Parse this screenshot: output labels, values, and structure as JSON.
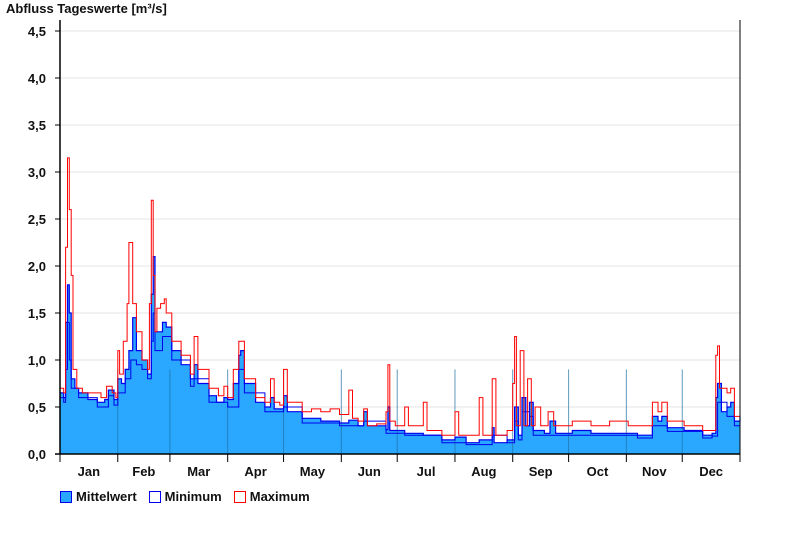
{
  "chart_data": {
    "type": "area",
    "title": "Abfluss Tageswerte [m³/s]",
    "xlabel": "",
    "ylabel": "Abfluss Tageswerte [m³/s]",
    "ylim": [
      0,
      4.5
    ],
    "xlim_days": [
      0,
      365
    ],
    "yticks": [
      "0,0",
      "0,5",
      "1,0",
      "1,5",
      "2,0",
      "2,5",
      "3,0",
      "3,5",
      "4,0",
      "4,5"
    ],
    "months": [
      "Jan",
      "Feb",
      "Mar",
      "Apr",
      "May",
      "Jun",
      "Jul",
      "Aug",
      "Sep",
      "Oct",
      "Nov",
      "Dec"
    ],
    "grid": true,
    "legend_position": "bottom-left",
    "colors": {
      "mean_fill": "#2aa8ff",
      "mean_line": "#0000ee",
      "min": "#0000ee",
      "max": "#ff0000"
    },
    "series": [
      {
        "name": "Mittelwert",
        "points": [
          [
            0,
            0.65
          ],
          [
            2,
            0.6
          ],
          [
            3,
            1.4
          ],
          [
            4,
            1.8
          ],
          [
            5,
            1.5
          ],
          [
            6,
            0.8
          ],
          [
            8,
            0.7
          ],
          [
            10,
            0.65
          ],
          [
            15,
            0.58
          ],
          [
            20,
            0.55
          ],
          [
            24,
            0.58
          ],
          [
            26,
            0.68
          ],
          [
            29,
            0.58
          ],
          [
            31,
            0.8
          ],
          [
            33,
            0.75
          ],
          [
            35,
            0.9
          ],
          [
            37,
            1.1
          ],
          [
            39,
            1.45
          ],
          [
            41,
            1.1
          ],
          [
            44,
            1.0
          ],
          [
            47,
            0.85
          ],
          [
            49,
            1.7
          ],
          [
            50,
            2.1
          ],
          [
            51,
            1.3
          ],
          [
            53,
            1.3
          ],
          [
            55,
            1.4
          ],
          [
            57,
            1.35
          ],
          [
            60,
            1.1
          ],
          [
            65,
            0.95
          ],
          [
            70,
            0.8
          ],
          [
            72,
            0.95
          ],
          [
            74,
            0.75
          ],
          [
            80,
            0.62
          ],
          [
            84,
            0.55
          ],
          [
            88,
            0.6
          ],
          [
            90,
            0.58
          ],
          [
            93,
            0.75
          ],
          [
            96,
            1.05
          ],
          [
            97,
            1.1
          ],
          [
            99,
            0.75
          ],
          [
            105,
            0.55
          ],
          [
            110,
            0.5
          ],
          [
            113,
            0.6
          ],
          [
            115,
            0.48
          ],
          [
            120,
            0.62
          ],
          [
            122,
            0.45
          ],
          [
            130,
            0.38
          ],
          [
            140,
            0.35
          ],
          [
            150,
            0.33
          ],
          [
            155,
            0.36
          ],
          [
            160,
            0.3
          ],
          [
            163,
            0.45
          ],
          [
            165,
            0.3
          ],
          [
            175,
            0.26
          ],
          [
            176,
            0.5
          ],
          [
            177,
            0.25
          ],
          [
            185,
            0.22
          ],
          [
            195,
            0.2
          ],
          [
            205,
            0.15
          ],
          [
            212,
            0.18
          ],
          [
            218,
            0.12
          ],
          [
            225,
            0.15
          ],
          [
            232,
            0.28
          ],
          [
            233,
            0.12
          ],
          [
            240,
            0.15
          ],
          [
            244,
            0.5
          ],
          [
            246,
            0.2
          ],
          [
            248,
            0.6
          ],
          [
            250,
            0.3
          ],
          [
            252,
            0.55
          ],
          [
            254,
            0.25
          ],
          [
            260,
            0.22
          ],
          [
            263,
            0.35
          ],
          [
            266,
            0.22
          ],
          [
            275,
            0.25
          ],
          [
            285,
            0.22
          ],
          [
            300,
            0.22
          ],
          [
            310,
            0.2
          ],
          [
            318,
            0.4
          ],
          [
            321,
            0.35
          ],
          [
            323,
            0.4
          ],
          [
            326,
            0.28
          ],
          [
            335,
            0.25
          ],
          [
            345,
            0.2
          ],
          [
            350,
            0.22
          ],
          [
            352,
            0.6
          ],
          [
            353,
            0.75
          ],
          [
            355,
            0.45
          ],
          [
            358,
            0.5
          ],
          [
            360,
            0.55
          ],
          [
            362,
            0.35
          ],
          [
            365,
            0.4
          ]
        ]
      },
      {
        "name": "Minimum",
        "points": [
          [
            0,
            0.6
          ],
          [
            2,
            0.55
          ],
          [
            3,
            0.9
          ],
          [
            4,
            1.4
          ],
          [
            5,
            1.0
          ],
          [
            6,
            0.7
          ],
          [
            10,
            0.6
          ],
          [
            20,
            0.5
          ],
          [
            26,
            0.62
          ],
          [
            29,
            0.52
          ],
          [
            31,
            0.65
          ],
          [
            35,
            0.8
          ],
          [
            38,
            1.0
          ],
          [
            41,
            0.95
          ],
          [
            44,
            0.9
          ],
          [
            47,
            0.8
          ],
          [
            49,
            1.2
          ],
          [
            50,
            1.5
          ],
          [
            51,
            1.1
          ],
          [
            55,
            1.25
          ],
          [
            60,
            1.0
          ],
          [
            70,
            0.72
          ],
          [
            72,
            0.8
          ],
          [
            80,
            0.55
          ],
          [
            90,
            0.5
          ],
          [
            96,
            0.9
          ],
          [
            99,
            0.65
          ],
          [
            110,
            0.45
          ],
          [
            120,
            0.5
          ],
          [
            130,
            0.33
          ],
          [
            150,
            0.3
          ],
          [
            163,
            0.35
          ],
          [
            175,
            0.22
          ],
          [
            185,
            0.2
          ],
          [
            205,
            0.12
          ],
          [
            218,
            0.1
          ],
          [
            232,
            0.2
          ],
          [
            240,
            0.12
          ],
          [
            244,
            0.35
          ],
          [
            246,
            0.15
          ],
          [
            248,
            0.45
          ],
          [
            252,
            0.4
          ],
          [
            254,
            0.2
          ],
          [
            275,
            0.2
          ],
          [
            310,
            0.17
          ],
          [
            318,
            0.3
          ],
          [
            326,
            0.24
          ],
          [
            345,
            0.17
          ],
          [
            350,
            0.19
          ],
          [
            353,
            0.55
          ],
          [
            358,
            0.4
          ],
          [
            362,
            0.3
          ],
          [
            365,
            0.33
          ]
        ]
      },
      {
        "name": "Maximum",
        "points": [
          [
            0,
            0.7
          ],
          [
            2,
            0.65
          ],
          [
            3,
            2.2
          ],
          [
            4,
            3.15
          ],
          [
            5,
            2.6
          ],
          [
            6,
            1.9
          ],
          [
            7,
            0.9
          ],
          [
            9,
            0.7
          ],
          [
            12,
            0.65
          ],
          [
            20,
            0.65
          ],
          [
            22,
            0.6
          ],
          [
            25,
            0.72
          ],
          [
            28,
            0.65
          ],
          [
            30,
            0.6
          ],
          [
            31,
            1.1
          ],
          [
            32,
            0.85
          ],
          [
            34,
            1.2
          ],
          [
            36,
            1.6
          ],
          [
            37,
            2.25
          ],
          [
            38,
            2.25
          ],
          [
            39,
            1.6
          ],
          [
            41,
            1.3
          ],
          [
            44,
            1.0
          ],
          [
            47,
            0.9
          ],
          [
            48,
            1.6
          ],
          [
            49,
            2.7
          ],
          [
            50,
            1.9
          ],
          [
            51,
            1.3
          ],
          [
            52,
            1.55
          ],
          [
            54,
            1.6
          ],
          [
            56,
            1.65
          ],
          [
            57,
            1.5
          ],
          [
            60,
            1.2
          ],
          [
            65,
            1.05
          ],
          [
            70,
            0.85
          ],
          [
            72,
            1.25
          ],
          [
            74,
            0.9
          ],
          [
            80,
            0.7
          ],
          [
            85,
            0.62
          ],
          [
            88,
            0.72
          ],
          [
            90,
            0.6
          ],
          [
            93,
            0.9
          ],
          [
            96,
            1.2
          ],
          [
            97,
            1.2
          ],
          [
            99,
            0.8
          ],
          [
            105,
            0.6
          ],
          [
            110,
            0.55
          ],
          [
            113,
            0.8
          ],
          [
            115,
            0.55
          ],
          [
            118,
            0.52
          ],
          [
            120,
            0.9
          ],
          [
            122,
            0.55
          ],
          [
            130,
            0.45
          ],
          [
            135,
            0.48
          ],
          [
            140,
            0.45
          ],
          [
            145,
            0.48
          ],
          [
            150,
            0.42
          ],
          [
            155,
            0.68
          ],
          [
            157,
            0.38
          ],
          [
            160,
            0.35
          ],
          [
            163,
            0.48
          ],
          [
            165,
            0.3
          ],
          [
            170,
            0.32
          ],
          [
            175,
            0.45
          ],
          [
            176,
            0.95
          ],
          [
            177,
            0.35
          ],
          [
            180,
            0.3
          ],
          [
            185,
            0.5
          ],
          [
            187,
            0.3
          ],
          [
            195,
            0.55
          ],
          [
            197,
            0.25
          ],
          [
            205,
            0.2
          ],
          [
            212,
            0.45
          ],
          [
            214,
            0.2
          ],
          [
            220,
            0.2
          ],
          [
            225,
            0.6
          ],
          [
            227,
            0.2
          ],
          [
            232,
            0.8
          ],
          [
            234,
            0.2
          ],
          [
            240,
            0.25
          ],
          [
            243,
            0.75
          ],
          [
            244,
            1.25
          ],
          [
            245,
            0.3
          ],
          [
            247,
            1.1
          ],
          [
            249,
            0.3
          ],
          [
            251,
            0.8
          ],
          [
            253,
            0.3
          ],
          [
            255,
            0.5
          ],
          [
            258,
            0.3
          ],
          [
            262,
            0.45
          ],
          [
            265,
            0.3
          ],
          [
            275,
            0.35
          ],
          [
            285,
            0.3
          ],
          [
            295,
            0.35
          ],
          [
            305,
            0.3
          ],
          [
            315,
            0.3
          ],
          [
            318,
            0.55
          ],
          [
            321,
            0.45
          ],
          [
            323,
            0.55
          ],
          [
            326,
            0.35
          ],
          [
            335,
            0.3
          ],
          [
            345,
            0.25
          ],
          [
            350,
            0.25
          ],
          [
            352,
            1.05
          ],
          [
            353,
            1.15
          ],
          [
            354,
            0.7
          ],
          [
            358,
            0.65
          ],
          [
            360,
            0.7
          ],
          [
            362,
            0.4
          ],
          [
            365,
            0.45
          ]
        ]
      }
    ]
  },
  "legend": {
    "mean": "Mittelwert",
    "min": "Minimum",
    "max": "Maximum"
  }
}
